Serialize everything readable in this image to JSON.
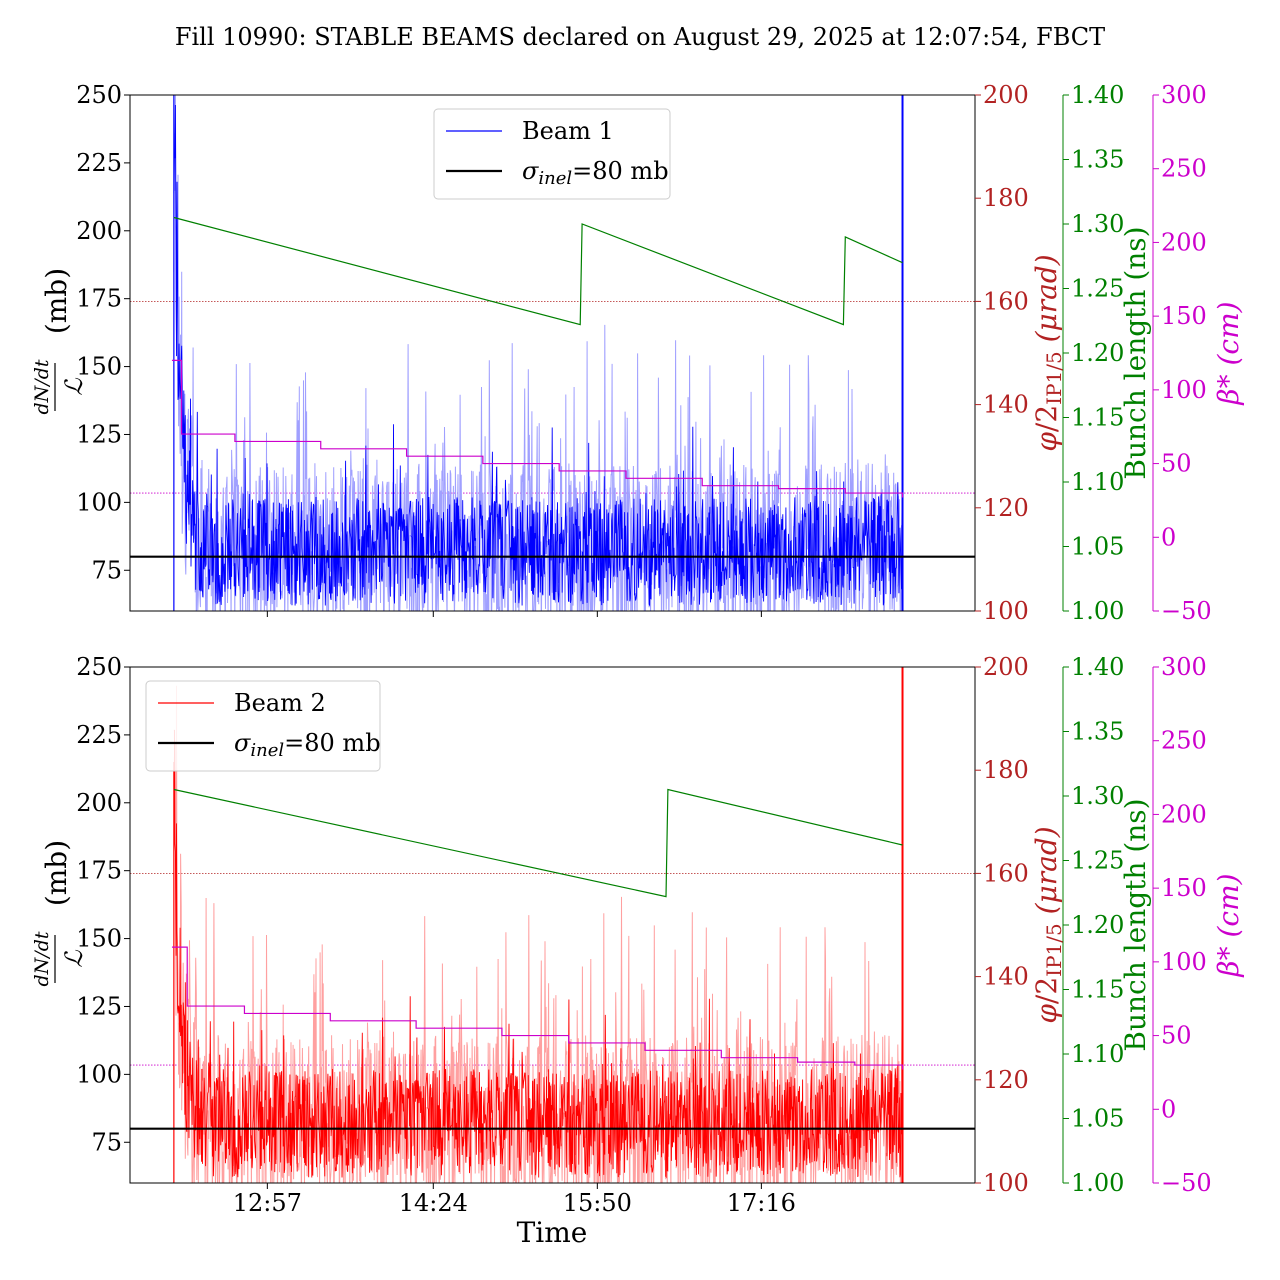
{
  "figure": {
    "title": "Fill 10990: STABLE BEAMS declared on August 29, 2025 at 12:07:54, FBCT",
    "xlabel": "Time"
  },
  "colors": {
    "beam1": "#0000ff",
    "beam1_light": "#a0a0ff",
    "beam2": "#ff0000",
    "beam2_light": "#ffa0a0",
    "phi": "#b22222",
    "bunch": "#008000",
    "beta": "#cc00cc",
    "sigma": "#000000"
  },
  "chart_data": [
    {
      "type": "line",
      "panel": "top",
      "ylabel": "dN/dt / ℒ (mb)",
      "ylim": [
        60,
        250
      ],
      "yticks": [
        "75",
        "100",
        "125",
        "150",
        "175",
        "200",
        "225",
        "250"
      ],
      "xlim": [
        "11:45",
        "19:08"
      ],
      "xticks": [
        "12:57",
        "14:24",
        "15:50",
        "17:16"
      ],
      "xtick_labels_shown": false,
      "legend": {
        "placement": "top-center",
        "entries": [
          "Beam 1",
          "σinel=80 mb"
        ]
      },
      "series": [
        {
          "name": "Beam 1",
          "color": "#0000ff",
          "baseline_mb": 80,
          "spike_at_start_mb": 250,
          "spike_at_end_mb": 250
        },
        {
          "name": "σinel=80 mb",
          "color": "#000000",
          "value": 80
        }
      ],
      "secondary_axes": [
        {
          "name": "phi",
          "label": "φ/2IP1/5 (μrad)",
          "color": "#b22222",
          "ylim": [
            100,
            200
          ],
          "ticks": [
            "100",
            "120",
            "140",
            "160",
            "180",
            "200"
          ],
          "reference": 160
        },
        {
          "name": "bunch",
          "label": "Bunch length (ns)",
          "color": "#008000",
          "ylim": [
            1.0,
            1.4
          ],
          "ticks": [
            "1.00",
            "1.05",
            "1.10",
            "1.15",
            "1.20",
            "1.25",
            "1.30",
            "1.35",
            "1.40"
          ],
          "points": [
            [
              "12:08",
              1.305
            ],
            [
              "15:41",
              1.222
            ],
            [
              "15:42",
              1.3
            ],
            [
              "17:59",
              1.222
            ],
            [
              "18:00",
              1.29
            ],
            [
              "18:30",
              1.27
            ]
          ]
        },
        {
          "name": "beta",
          "label": "β* (cm)",
          "color": "#cc00cc",
          "ylim": [
            -50,
            300
          ],
          "ticks": [
            "−50",
            "0",
            "50",
            "100",
            "150",
            "200",
            "250",
            "300"
          ],
          "reference": 30,
          "steps": [
            [
              "12:07",
              120
            ],
            [
              "12:12",
              70
            ],
            [
              "12:40",
              65
            ],
            [
              "13:25",
              60
            ],
            [
              "14:10",
              55
            ],
            [
              "14:50",
              50
            ],
            [
              "15:30",
              45
            ],
            [
              "16:05",
              40
            ],
            [
              "16:45",
              35
            ],
            [
              "17:25",
              33
            ],
            [
              "18:00",
              30
            ],
            [
              "18:30",
              27
            ]
          ]
        }
      ]
    },
    {
      "type": "line",
      "panel": "bottom",
      "ylabel": "dN/dt / ℒ (mb)",
      "ylim": [
        60,
        250
      ],
      "yticks": [
        "75",
        "100",
        "125",
        "150",
        "175",
        "200",
        "225",
        "250"
      ],
      "xlim": [
        "11:45",
        "19:08"
      ],
      "xticks": [
        "12:57",
        "14:24",
        "15:50",
        "17:16"
      ],
      "xtick_labels_shown": true,
      "legend": {
        "placement": "top-left",
        "entries": [
          "Beam 2",
          "σinel=80 mb"
        ]
      },
      "series": [
        {
          "name": "Beam 2",
          "color": "#ff0000",
          "baseline_mb": 80,
          "spike_at_start_mb": 215,
          "spike_at_end_mb": 250
        },
        {
          "name": "σinel=80 mb",
          "color": "#000000",
          "value": 80
        }
      ],
      "secondary_axes": [
        {
          "name": "phi",
          "label": "φ/2IP1/5 (μrad)",
          "color": "#b22222",
          "ylim": [
            100,
            200
          ],
          "ticks": [
            "100",
            "120",
            "140",
            "160",
            "180",
            "200"
          ],
          "reference": 160
        },
        {
          "name": "bunch",
          "label": "Bunch length (ns)",
          "color": "#008000",
          "ylim": [
            1.0,
            1.4
          ],
          "ticks": [
            "1.00",
            "1.05",
            "1.10",
            "1.15",
            "1.20",
            "1.25",
            "1.30",
            "1.35",
            "1.40"
          ],
          "points": [
            [
              "12:08",
              1.305
            ],
            [
              "16:26",
              1.222
            ],
            [
              "16:27",
              1.305
            ],
            [
              "18:30",
              1.262
            ]
          ]
        },
        {
          "name": "beta",
          "label": "β* (cm)",
          "color": "#cc00cc",
          "ylim": [
            -50,
            300
          ],
          "ticks": [
            "−50",
            "0",
            "50",
            "100",
            "150",
            "200",
            "250",
            "300"
          ],
          "reference": 30,
          "steps": [
            [
              "12:07",
              110
            ],
            [
              "12:15",
              70
            ],
            [
              "12:45",
              65
            ],
            [
              "13:30",
              60
            ],
            [
              "14:15",
              55
            ],
            [
              "15:00",
              50
            ],
            [
              "15:35",
              45
            ],
            [
              "16:15",
              40
            ],
            [
              "16:55",
              35
            ],
            [
              "17:35",
              32
            ],
            [
              "18:05",
              30
            ],
            [
              "18:30",
              27
            ]
          ]
        }
      ]
    }
  ]
}
